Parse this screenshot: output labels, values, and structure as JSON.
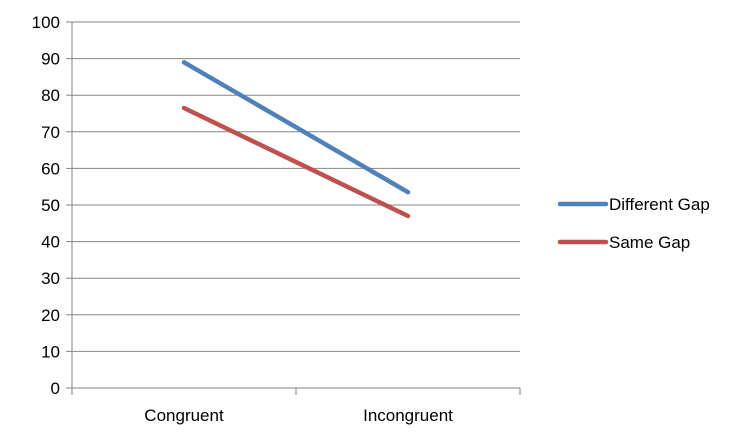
{
  "chart_data": {
    "type": "line",
    "categories": [
      "Congruent",
      "Incongruent"
    ],
    "series": [
      {
        "name": "Different Gap",
        "values": [
          89,
          53.5
        ],
        "color": "#4f81bd"
      },
      {
        "name": "Same Gap",
        "values": [
          76.5,
          47
        ],
        "color": "#c0504d"
      }
    ],
    "ylim": [
      0,
      100
    ],
    "yticks": [
      0,
      10,
      20,
      30,
      40,
      50,
      60,
      70,
      80,
      90,
      100
    ],
    "grid": true,
    "legend": "right",
    "axis_color": "#868686",
    "grid_color": "#868686"
  }
}
